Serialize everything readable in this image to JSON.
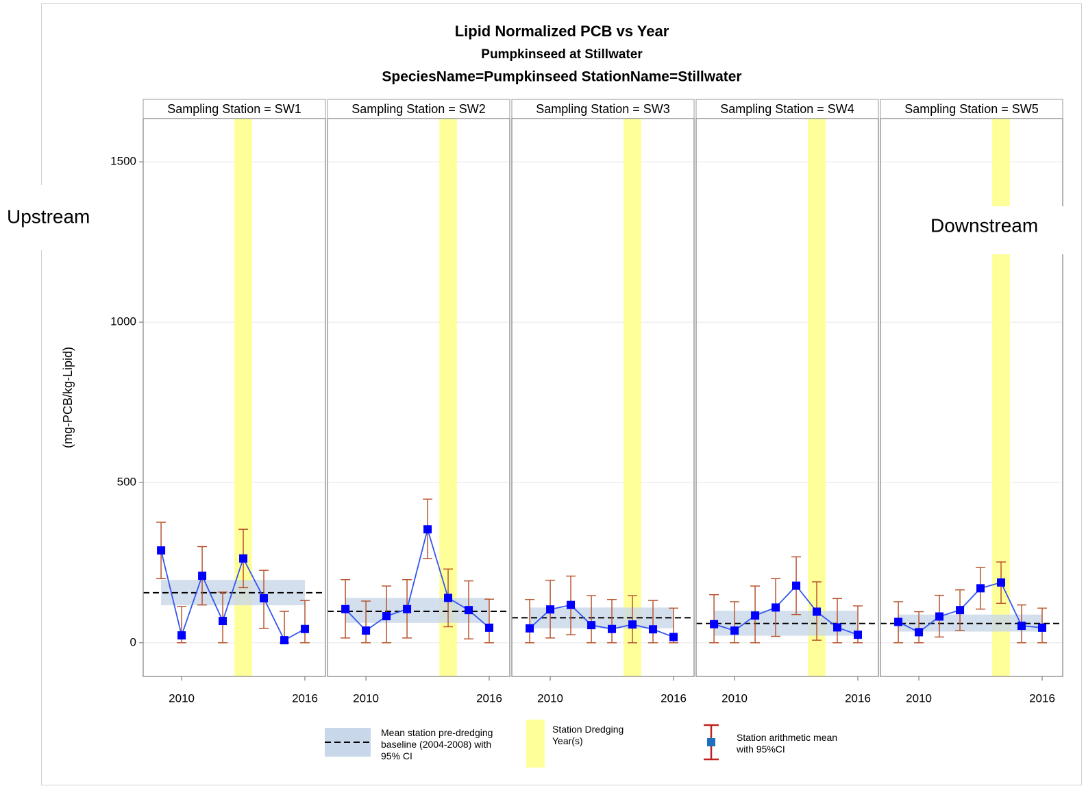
{
  "chart_data": {
    "type": "line",
    "title": "Lipid Normalized PCB vs Year",
    "subtitle": "Pumpkinseed at Stillwater",
    "subtitle2": "SpeciesName=Pumpkinseed StationName=Stillwater",
    "y_label": "(mg-PCB/kg-Lipid)",
    "ylim": [
      -105,
      1635
    ],
    "yticks": [
      0,
      500,
      1000,
      1500
    ],
    "xlim": [
      2008.13,
      2017
    ],
    "xticks": [
      2010,
      2016
    ],
    "grid": true,
    "x": [
      2009,
      2010,
      2011,
      2012,
      2013,
      2014,
      2015,
      2016
    ],
    "line_color": "#3355ee",
    "marker_color": "#0000ff",
    "error_color": "#b8552e",
    "band_color": "#c9d7ea",
    "dredge_color": "#ffff99",
    "panels": [
      {
        "name": "Sampling Station = SW1",
        "values": [
          288,
          23,
          209,
          68,
          263,
          139,
          8,
          43
        ],
        "lower": [
          200,
          0,
          118,
          0,
          172,
          45,
          0,
          0
        ],
        "upper": [
          376,
          113,
          300,
          158,
          354,
          226,
          98,
          132
        ],
        "baseline": 156,
        "baseline_lower": 117,
        "baseline_upper": 196,
        "dredging_year": 2013
      },
      {
        "name": "Sampling Station = SW2",
        "values": [
          105,
          38,
          83,
          105,
          354,
          140,
          102,
          47
        ],
        "lower": [
          15,
          0,
          0,
          15,
          263,
          50,
          12,
          0
        ],
        "upper": [
          197,
          130,
          177,
          197,
          448,
          230,
          193,
          136
        ],
        "baseline": 98,
        "baseline_lower": 62,
        "baseline_upper": 140,
        "dredging_year": 2014
      },
      {
        "name": "Sampling Station = SW3",
        "values": [
          45,
          104,
          118,
          55,
          43,
          57,
          42,
          18
        ],
        "lower": [
          0,
          15,
          25,
          0,
          0,
          0,
          0,
          0
        ],
        "upper": [
          135,
          195,
          208,
          147,
          135,
          147,
          132,
          108
        ],
        "baseline": 78,
        "baseline_lower": 45,
        "baseline_upper": 110,
        "dredging_year": 2014
      },
      {
        "name": "Sampling Station = SW4",
        "values": [
          58,
          38,
          85,
          110,
          178,
          97,
          48,
          25
        ],
        "lower": [
          0,
          0,
          0,
          20,
          88,
          8,
          0,
          0
        ],
        "upper": [
          150,
          128,
          177,
          200,
          268,
          190,
          138,
          115
        ],
        "baseline": 60,
        "baseline_lower": 22,
        "baseline_upper": 100,
        "dredging_year": 2014
      },
      {
        "name": "Sampling Station = SW5",
        "values": [
          65,
          33,
          82,
          102,
          170,
          188,
          53,
          47
        ],
        "lower": [
          0,
          0,
          18,
          38,
          105,
          123,
          0,
          0
        ],
        "upper": [
          128,
          97,
          148,
          165,
          235,
          252,
          118,
          108
        ],
        "baseline": 60,
        "baseline_lower": 35,
        "baseline_upper": 88,
        "dredging_year": 2014
      }
    ],
    "legend": [
      "Mean station pre-dredging baseline (2004-2008) with 95% CI",
      "Station Dredging Year(s)",
      "Station arithmetic mean with 95%CI"
    ],
    "annotations": [
      "Upstream",
      "Downstream"
    ]
  }
}
